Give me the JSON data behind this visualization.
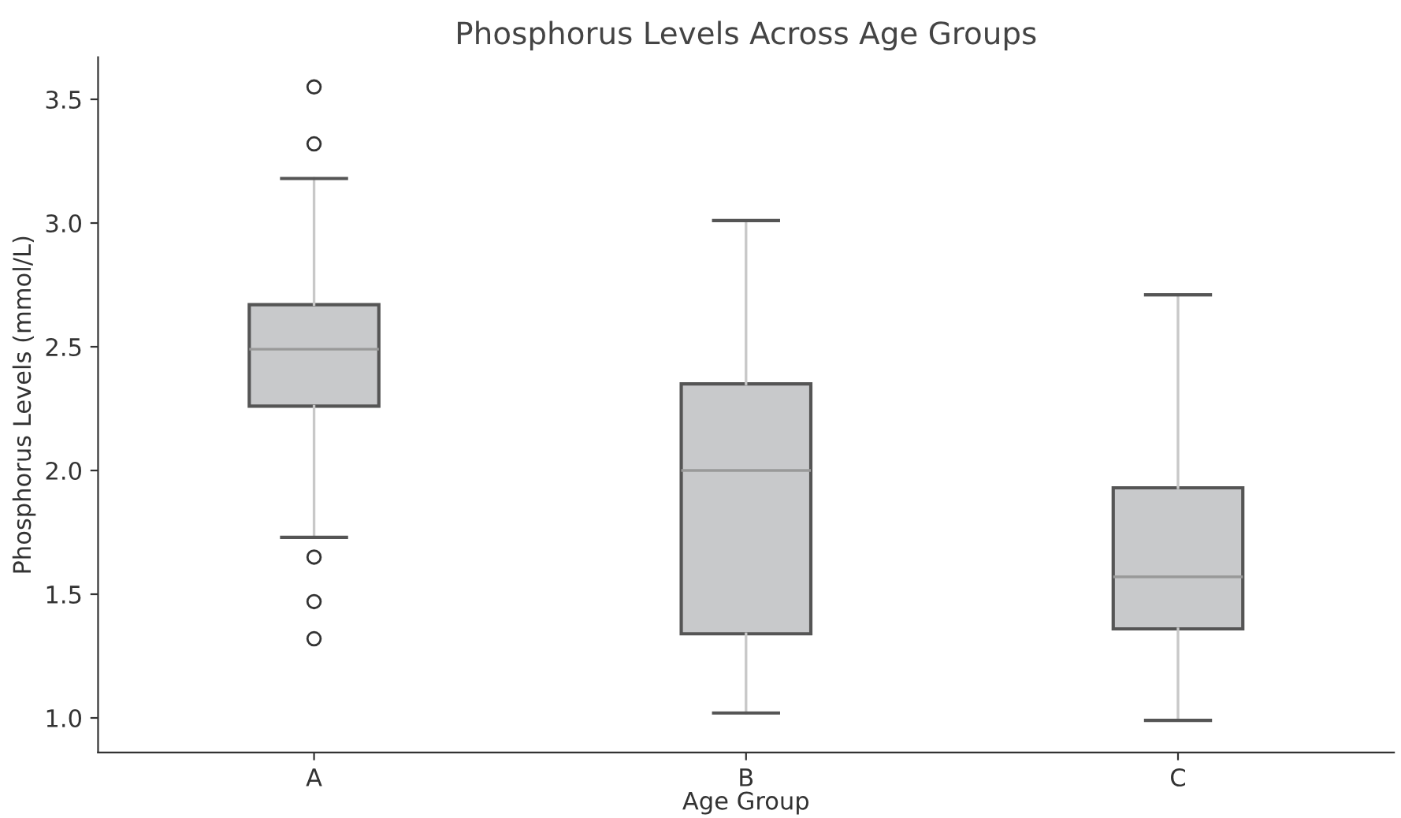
{
  "chart_data": {
    "type": "box",
    "title": "Phosphorus Levels Across Age Groups",
    "xlabel": "Age Group",
    "ylabel": "Phosphorus Levels (mmol/L)",
    "categories": [
      "A",
      "B",
      "C"
    ],
    "boxes": [
      {
        "low": 1.73,
        "q1": 2.26,
        "median": 2.49,
        "q3": 2.67,
        "high": 3.18,
        "outliers": [
          3.55,
          3.32,
          1.65,
          1.47,
          1.32
        ]
      },
      {
        "low": 1.02,
        "q1": 1.34,
        "median": 2.0,
        "q3": 2.35,
        "high": 3.01
      },
      {
        "low": 0.99,
        "q1": 1.36,
        "median": 1.57,
        "q3": 1.93,
        "high": 2.71
      }
    ],
    "color": "#c8c9cb",
    "ylim": [
      0.86,
      3.67
    ],
    "yticks": [
      {
        "value": 1,
        "label": "1.0"
      },
      1.5,
      {
        "value": 2,
        "label": "2.0"
      },
      2.5,
      {
        "value": 3,
        "label": "3.0"
      },
      3.5
    ],
    "grid": false
  }
}
